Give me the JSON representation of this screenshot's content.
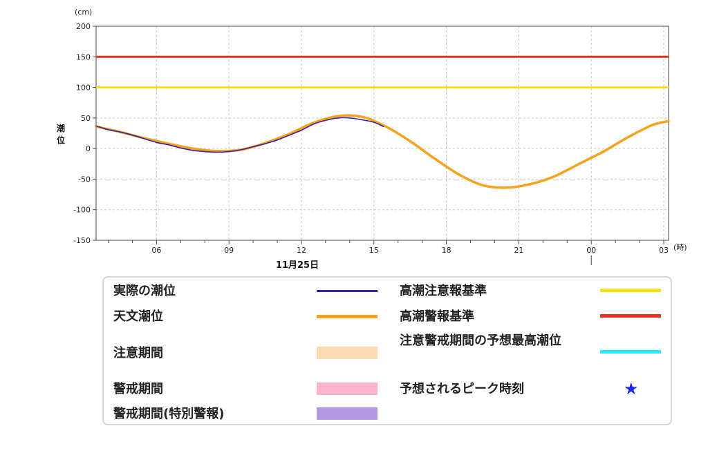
{
  "chart_data": {
    "type": "line",
    "ylabel": "潮位",
    "yunit": "(cm)",
    "xunit": "(時)",
    "date_label": "11月25日",
    "ylim": [
      -150,
      200
    ],
    "yticks": [
      200,
      150,
      100,
      50,
      0,
      -50,
      -100,
      -150
    ],
    "xlim_hours": [
      3.5,
      27.2
    ],
    "xticks": [
      {
        "hour": 6,
        "label": "06"
      },
      {
        "hour": 9,
        "label": "09"
      },
      {
        "hour": 12,
        "label": "12"
      },
      {
        "hour": 15,
        "label": "15"
      },
      {
        "hour": 18,
        "label": "18"
      },
      {
        "hour": 21,
        "label": "21"
      },
      {
        "hour": 24,
        "label": "00"
      },
      {
        "hour": 27,
        "label": "03"
      }
    ],
    "grid": true,
    "series": [
      {
        "name": "天文潮位",
        "color": "#f5a21c",
        "x": [
          3.5,
          4.5,
          5.5,
          6.5,
          7.5,
          8.5,
          9.5,
          10.5,
          11.5,
          12.5,
          13.5,
          14.5,
          15.5,
          16.5,
          17.5,
          18.5,
          19.5,
          20.5,
          21.5,
          22.5,
          23.5,
          24.5,
          25.5,
          26.5,
          27.2
        ],
        "y": [
          36,
          27,
          17,
          8,
          0,
          -4,
          -2,
          9,
          24,
          42,
          53,
          52,
          36,
          12,
          -16,
          -42,
          -60,
          -64,
          -58,
          -45,
          -25,
          -5,
          18,
          38,
          45
        ]
      },
      {
        "name": "実際の潮位",
        "color": "#3a1fa3",
        "x": [
          3.5,
          4.0,
          4.5,
          5.0,
          5.5,
          6.0,
          6.5,
          7.0,
          7.5,
          8.0,
          8.5,
          9.0,
          9.5,
          10.0,
          10.5,
          11.0,
          11.5,
          12.0,
          12.5,
          13.0,
          13.5,
          14.0,
          14.5,
          15.0,
          15.4
        ],
        "y": [
          37,
          31,
          27,
          22,
          16,
          10,
          6,
          1,
          -3,
          -5,
          -6,
          -5,
          -2,
          3,
          8,
          14,
          22,
          30,
          40,
          46,
          50,
          50,
          47,
          43,
          36
        ]
      }
    ],
    "reference_lines": [
      {
        "name": "高潮注意報基準",
        "value": 100,
        "color": "#f3e11a"
      },
      {
        "name": "高潮警報基準",
        "value": 150,
        "color": "#e3331c"
      }
    ]
  },
  "legend": {
    "items": [
      {
        "label": "実際の潮位",
        "color": "#3a1fa3",
        "kind": "line"
      },
      {
        "label": "天文潮位",
        "color": "#f5a21c",
        "kind": "line"
      },
      {
        "label": "注意期間",
        "color": "#fddbb2",
        "kind": "band"
      },
      {
        "label": "警戒期間",
        "color": "#fcb3cc",
        "kind": "band"
      },
      {
        "label": "警戒期間(特別警報)",
        "color": "#b29ae0",
        "kind": "band"
      },
      {
        "label": "高潮注意報基準",
        "color": "#f3e11a",
        "kind": "line"
      },
      {
        "label": "高潮警報基準",
        "color": "#e3331c",
        "kind": "line"
      },
      {
        "label": "注意警戒期間の予想最高潮位",
        "color": "#22ecf5",
        "kind": "line"
      },
      {
        "label": "予想されるピーク時刻",
        "color": "#1d2bf0",
        "kind": "star",
        "glyph": "★"
      }
    ]
  }
}
